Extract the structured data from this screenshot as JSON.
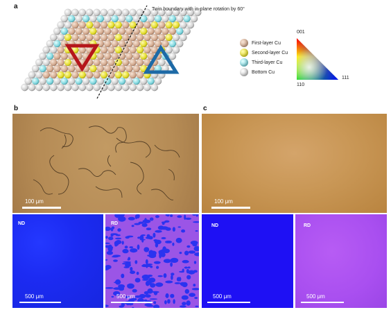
{
  "panels": {
    "a": {
      "letter": "a",
      "twin_label": "Twin boundary with in-plane rotation by 60°",
      "legend": [
        {
          "label": "First-layer Cu",
          "color": "#d9b49a"
        },
        {
          "label": "Second-layer Cu",
          "color": "#e8e23a"
        },
        {
          "label": "Third-layer Cu",
          "color": "#7fd8e0"
        },
        {
          "label": "Bottom Cu",
          "color": "#c8c8c8"
        }
      ],
      "triangle_left_color": "#b5161b",
      "triangle_right_color": "#1d6aa6",
      "ipf": {
        "top": "001",
        "left": "110",
        "right": "111"
      }
    },
    "b": {
      "letter": "b",
      "optical_scalebar": "100 μm",
      "nd_label": "ND",
      "rd_label": "RD",
      "nd_scalebar": "500 μm",
      "rd_scalebar": "500 μm"
    },
    "c": {
      "letter": "c",
      "optical_scalebar": "100 μm",
      "nd_label": "ND",
      "rd_label": "RD",
      "nd_scalebar": "500 μm",
      "rd_scalebar": "500 μm"
    }
  }
}
